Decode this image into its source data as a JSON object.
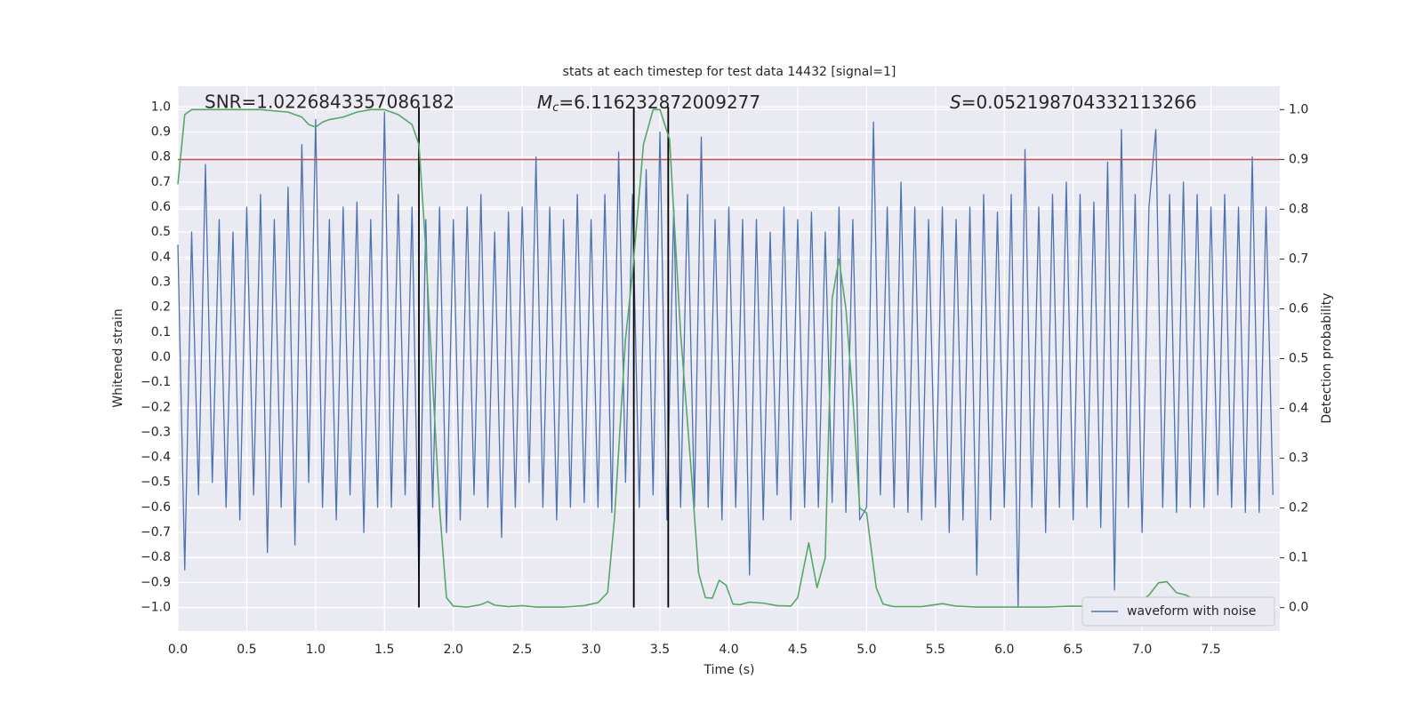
{
  "chart_data": {
    "type": "line",
    "title": "stats at each timestep for test data 14432 [signal=1]",
    "xlabel": "Time (s)",
    "ylabel": "Whitened strain",
    "y2label": "Detection probability",
    "xlim": [
      0,
      8
    ],
    "ylim": [
      -1.094,
      1.083
    ],
    "y2lim": [
      -0.047,
      1.047
    ],
    "xticks": [
      {
        "value": 0,
        "label": "0.0"
      },
      {
        "value": 0.5,
        "label": "0.5"
      },
      {
        "value": 1,
        "label": "1.0"
      },
      {
        "value": 1.5,
        "label": "1.5"
      },
      {
        "value": 2,
        "label": "2.0"
      },
      {
        "value": 2.5,
        "label": "2.5"
      },
      {
        "value": 3,
        "label": "3.0"
      },
      {
        "value": 3.5,
        "label": "3.5"
      },
      {
        "value": 4,
        "label": "4.0"
      },
      {
        "value": 4.5,
        "label": "4.5"
      },
      {
        "value": 5,
        "label": "5.0"
      },
      {
        "value": 5.5,
        "label": "5.5"
      },
      {
        "value": 6,
        "label": "6.0"
      },
      {
        "value": 6.5,
        "label": "6.5"
      },
      {
        "value": 7,
        "label": "7.0"
      },
      {
        "value": 7.5,
        "label": "7.5"
      }
    ],
    "yticks": [
      {
        "value": -1,
        "label": "−1.0"
      },
      {
        "value": -0.9,
        "label": "−0.9"
      },
      {
        "value": -0.8,
        "label": "−0.8"
      },
      {
        "value": -0.7,
        "label": "−0.7"
      },
      {
        "value": -0.6,
        "label": "−0.6"
      },
      {
        "value": -0.5,
        "label": "−0.5"
      },
      {
        "value": -0.4,
        "label": "−0.4"
      },
      {
        "value": -0.3,
        "label": "−0.3"
      },
      {
        "value": -0.2,
        "label": "−0.2"
      },
      {
        "value": -0.1,
        "label": "−0.1"
      },
      {
        "value": 0,
        "label": "0.0"
      },
      {
        "value": 0.1,
        "label": "0.1"
      },
      {
        "value": 0.2,
        "label": "0.2"
      },
      {
        "value": 0.3,
        "label": "0.3"
      },
      {
        "value": 0.4,
        "label": "0.4"
      },
      {
        "value": 0.5,
        "label": "0.5"
      },
      {
        "value": 0.6,
        "label": "0.6"
      },
      {
        "value": 0.7,
        "label": "0.7"
      },
      {
        "value": 0.8,
        "label": "0.8"
      },
      {
        "value": 0.9,
        "label": "0.9"
      },
      {
        "value": 1,
        "label": "1.0"
      }
    ],
    "y2ticks": [
      {
        "value": 0,
        "label": "0.0"
      },
      {
        "value": 0.1,
        "label": "0.1"
      },
      {
        "value": 0.2,
        "label": "0.2"
      },
      {
        "value": 0.3,
        "label": "0.3"
      },
      {
        "value": 0.4,
        "label": "0.4"
      },
      {
        "value": 0.5,
        "label": "0.5"
      },
      {
        "value": 0.6,
        "label": "0.6"
      },
      {
        "value": 0.7,
        "label": "0.7"
      },
      {
        "value": 0.8,
        "label": "0.8"
      },
      {
        "value": 0.9,
        "label": "0.9"
      },
      {
        "value": 1,
        "label": "1.0"
      }
    ],
    "grid": true,
    "legend": "lower right",
    "annotations": [
      {
        "text": "SNR=1.0226843357086182"
      },
      {
        "symbol": "M",
        "subscript": "c",
        "text": "=6.116232872009277"
      },
      {
        "symbol": "S",
        "text": "=0.052198704332113266"
      }
    ],
    "hline": {
      "y": 0.79,
      "color": "#c44e52"
    },
    "vlines": {
      "x": [
        1.75,
        3.31,
        3.56
      ],
      "ymin": -1,
      "ymax": 1,
      "color": "#000000"
    },
    "series": [
      {
        "name": "waveform with noise",
        "color": "#4c72b0",
        "x": [
          0,
          0.05,
          0.1,
          0.15,
          0.2,
          0.25,
          0.3,
          0.35,
          0.4,
          0.45,
          0.5,
          0.55,
          0.6,
          0.65,
          0.7,
          0.75,
          0.8,
          0.85,
          0.9,
          0.95,
          1,
          1.05,
          1.1,
          1.15,
          1.2,
          1.25,
          1.3,
          1.35,
          1.4,
          1.45,
          1.5,
          1.55,
          1.6,
          1.65,
          1.7,
          1.75,
          1.8,
          1.85,
          1.9,
          1.95,
          2,
          2.05,
          2.1,
          2.15,
          2.2,
          2.25,
          2.3,
          2.35,
          2.4,
          2.45,
          2.5,
          2.55,
          2.6,
          2.65,
          2.7,
          2.75,
          2.8,
          2.85,
          2.9,
          2.95,
          3,
          3.05,
          3.1,
          3.15,
          3.2,
          3.25,
          3.3,
          3.35,
          3.4,
          3.45,
          3.5,
          3.55,
          3.6,
          3.65,
          3.7,
          3.75,
          3.8,
          3.85,
          3.9,
          3.95,
          4,
          4.05,
          4.1,
          4.15,
          4.2,
          4.25,
          4.3,
          4.35,
          4.4,
          4.45,
          4.5,
          4.55,
          4.6,
          4.65,
          4.7,
          4.75,
          4.8,
          4.85,
          4.9,
          4.95,
          5,
          5.05,
          5.1,
          5.15,
          5.2,
          5.25,
          5.3,
          5.35,
          5.4,
          5.45,
          5.5,
          5.55,
          5.6,
          5.65,
          5.7,
          5.75,
          5.8,
          5.85,
          5.9,
          5.95,
          6,
          6.05,
          6.1,
          6.15,
          6.2,
          6.25,
          6.3,
          6.35,
          6.4,
          6.45,
          6.5,
          6.55,
          6.6,
          6.65,
          6.7,
          6.75,
          6.8,
          6.85,
          6.9,
          6.95,
          7,
          7.05,
          7.1,
          7.15,
          7.2,
          7.25,
          7.3,
          7.35,
          7.4,
          7.45,
          7.5,
          7.55,
          7.6,
          7.65,
          7.7,
          7.75,
          7.8,
          7.85,
          7.9,
          7.95
        ],
        "values": [
          0.45,
          -0.85,
          0.5,
          -0.55,
          0.77,
          -0.5,
          0.55,
          -0.6,
          0.5,
          -0.65,
          0.6,
          -0.55,
          0.65,
          -0.78,
          0.55,
          -0.6,
          0.68,
          -0.75,
          0.85,
          -0.5,
          0.95,
          -0.6,
          0.55,
          -0.65,
          0.6,
          -0.55,
          0.62,
          -0.7,
          0.55,
          -0.6,
          0.98,
          -0.6,
          0.65,
          -0.55,
          0.6,
          -0.9,
          0.55,
          -0.6,
          0.6,
          -0.7,
          0.55,
          -0.65,
          0.6,
          -0.55,
          0.65,
          -0.6,
          0.5,
          -0.72,
          0.58,
          -0.6,
          0.6,
          -0.5,
          0.8,
          -0.6,
          0.6,
          -0.65,
          0.55,
          -0.6,
          0.65,
          -0.58,
          0.55,
          -0.6,
          0.65,
          -0.62,
          0.82,
          -0.5,
          0.65,
          -0.6,
          0.75,
          -0.55,
          0.9,
          -0.65,
          0.6,
          -0.6,
          0.65,
          -0.6,
          0.88,
          -0.6,
          0.55,
          -0.65,
          0.6,
          -0.6,
          0.55,
          -0.87,
          0.55,
          -0.65,
          0.5,
          -0.55,
          0.6,
          -0.65,
          0.55,
          -0.6,
          0.58,
          -0.6,
          0.5,
          -0.58,
          0.6,
          -0.62,
          0.55,
          -0.65,
          -0.6,
          0.94,
          -0.55,
          0.6,
          -0.6,
          0.7,
          -0.62,
          0.6,
          -0.65,
          0.55,
          -0.6,
          0.6,
          -0.7,
          0.55,
          -0.65,
          0.6,
          -0.87,
          0.65,
          -0.65,
          0.58,
          -0.6,
          0.65,
          -1.0,
          0.83,
          -0.6,
          0.6,
          -0.7,
          0.65,
          -0.6,
          0.7,
          -0.65,
          0.65,
          -0.6,
          0.62,
          -0.68,
          0.78,
          -0.93,
          0.91,
          -0.6,
          0.65,
          -0.7,
          0.6,
          0.91,
          -0.6,
          0.65,
          -0.62,
          0.7,
          -0.6,
          0.65,
          -0.6,
          0.6,
          -0.55,
          0.65,
          -0.6,
          0.6,
          -0.62,
          0.8,
          -0.62,
          0.6,
          -0.55
        ]
      },
      {
        "color": "#55a868",
        "axis": "y2",
        "x": [
          0,
          0.05,
          0.1,
          0.2,
          0.4,
          0.6,
          0.8,
          0.9,
          0.95,
          1,
          1.05,
          1.1,
          1.2,
          1.3,
          1.4,
          1.5,
          1.6,
          1.7,
          1.75,
          1.8,
          1.85,
          1.9,
          1.95,
          2,
          2.1,
          2.2,
          2.25,
          2.3,
          2.4,
          2.5,
          2.6,
          2.8,
          2.95,
          3.05,
          3.12,
          3.17,
          3.25,
          3.3,
          3.38,
          3.45,
          3.5,
          3.57,
          3.65,
          3.72,
          3.78,
          3.83,
          3.88,
          3.93,
          3.98,
          4.03,
          4.08,
          4.15,
          4.25,
          4.35,
          4.45,
          4.5,
          4.58,
          4.64,
          4.7,
          4.75,
          4.8,
          4.85,
          4.9,
          4.95,
          5,
          5.07,
          5.12,
          5.2,
          5.4,
          5.55,
          5.65,
          5.8,
          6,
          6.1,
          6.3,
          6.5,
          6.7,
          6.8,
          6.92,
          7,
          7.05,
          7.12,
          7.18,
          7.25,
          7.32,
          7.4,
          7.5,
          7.7,
          7.95
        ],
        "values": [
          0.85,
          0.99,
          1.0,
          1.0,
          1.0,
          1.0,
          0.995,
          0.985,
          0.97,
          0.965,
          0.975,
          0.98,
          0.985,
          0.995,
          1.0,
          1.0,
          0.99,
          0.97,
          0.93,
          0.72,
          0.45,
          0.2,
          0.02,
          0.003,
          0.001,
          0.006,
          0.012,
          0.005,
          0.002,
          0.004,
          0.001,
          0.001,
          0.004,
          0.01,
          0.03,
          0.18,
          0.54,
          0.67,
          0.93,
          1.0,
          1.0,
          0.94,
          0.55,
          0.3,
          0.07,
          0.02,
          0.019,
          0.055,
          0.045,
          0.007,
          0.006,
          0.011,
          0.009,
          0.004,
          0.003,
          0.02,
          0.13,
          0.04,
          0.1,
          0.62,
          0.7,
          0.6,
          0.42,
          0.2,
          0.19,
          0.04,
          0.007,
          0.002,
          0.002,
          0.008,
          0.003,
          0.001,
          0.001,
          0.001,
          0.001,
          0.003,
          0.002,
          0.004,
          0.013,
          0.015,
          0.025,
          0.05,
          0.052,
          0.03,
          0.025,
          0.013,
          0.003,
          0.001,
          0.002
        ]
      }
    ]
  }
}
